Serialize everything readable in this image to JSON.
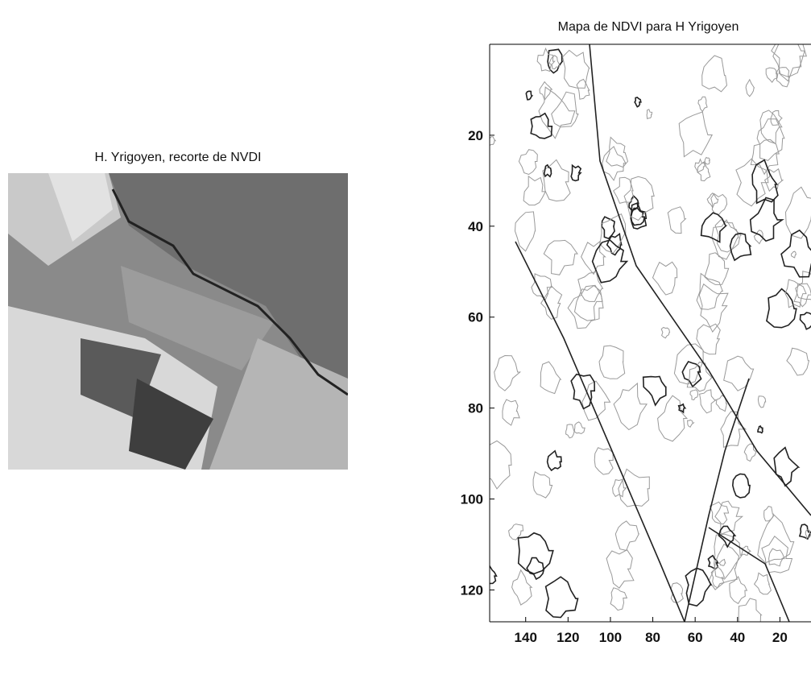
{
  "chart_data": [
    {
      "type": "image",
      "title": "H. Yrigoyen, recorte de NVDI"
    },
    {
      "type": "contour",
      "title": "Mapa de NDVI para H Yrigoyen",
      "xlim": [
        157,
        0
      ],
      "ylim": [
        0,
        127
      ],
      "xticks": [
        140,
        120,
        100,
        80,
        60,
        40,
        20
      ],
      "yticks": [
        20,
        40,
        60,
        80,
        100,
        120
      ]
    }
  ]
}
